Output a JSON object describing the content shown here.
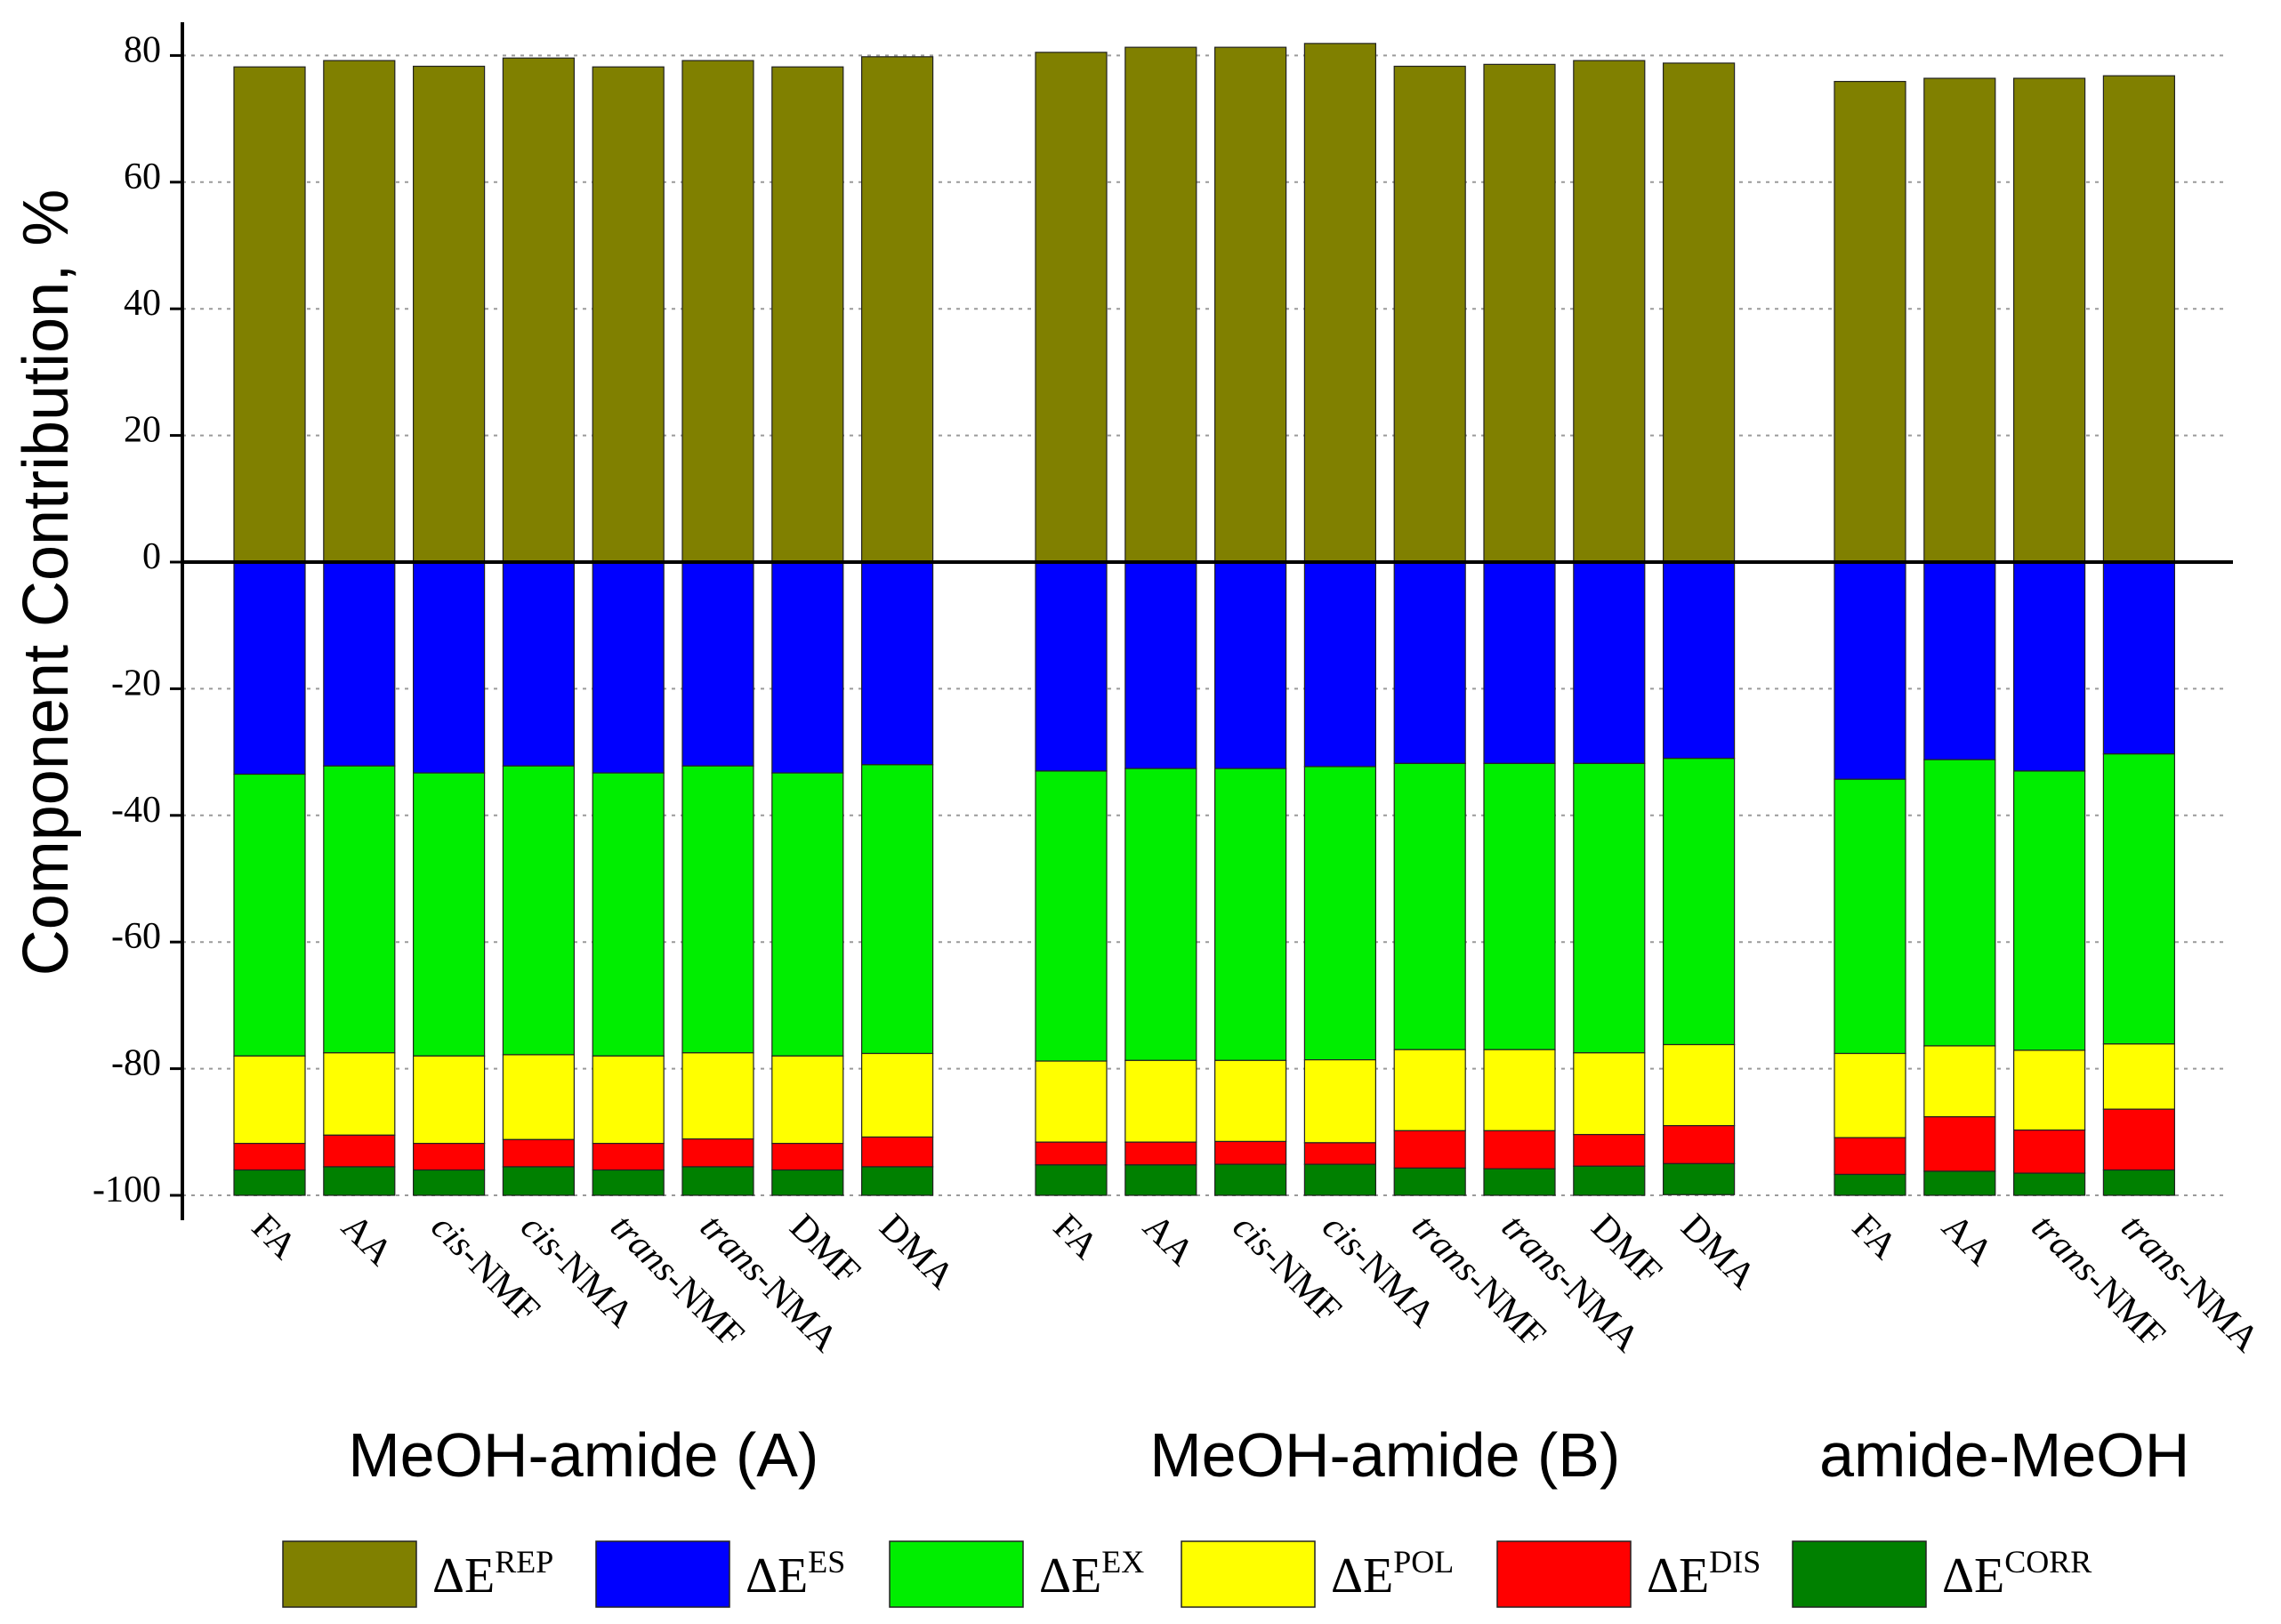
{
  "chart_data": {
    "type": "bar",
    "stacked": true,
    "ylabel": "Component Contribution, %",
    "ylim": [
      -100,
      85
    ],
    "yticks": [
      {
        "value": 80,
        "label": "80"
      },
      {
        "value": 60,
        "label": "60"
      },
      {
        "value": 40,
        "label": "40"
      },
      {
        "value": 20,
        "label": "20"
      },
      {
        "value": 0,
        "label": "0"
      },
      {
        "value": -20,
        "label": "-20"
      },
      {
        "value": -40,
        "label": "-40"
      },
      {
        "value": -60,
        "label": "-60"
      },
      {
        "value": -80,
        "label": "-80"
      },
      {
        "value": -100,
        "label": "-100"
      }
    ],
    "grid": true,
    "legend_position": "bottom",
    "series": [
      {
        "key": "rep",
        "base": "ΔE",
        "sup": "REP",
        "color": "#808000"
      },
      {
        "key": "es",
        "base": "ΔE",
        "sup": "ES",
        "color": "#0000ff"
      },
      {
        "key": "ex",
        "base": "ΔE",
        "sup": "EX",
        "color": "#00ee00"
      },
      {
        "key": "pol",
        "base": "ΔE",
        "sup": "POL",
        "color": "#ffff00"
      },
      {
        "key": "dis",
        "base": "ΔE",
        "sup": "DIS",
        "color": "#ff0000"
      },
      {
        "key": "corr",
        "base": "ΔE",
        "sup": "CORR",
        "color": "#008000"
      }
    ],
    "groups": [
      {
        "name": "MeOH-amide (A)",
        "categories": [
          {
            "label": "FA",
            "italic_prefix": "",
            "rep": 78.2,
            "es": -33.5,
            "ex": -44.5,
            "pol": -13.8,
            "dis": -4.2,
            "corr": -4.0
          },
          {
            "label": "AA",
            "italic_prefix": "",
            "rep": 79.2,
            "es": -32.2,
            "ex": -45.3,
            "pol": -13.0,
            "dis": -5.0,
            "corr": -4.5
          },
          {
            "label": "-NMF",
            "italic_prefix": "cis",
            "rep": 78.3,
            "es": -33.3,
            "ex": -44.7,
            "pol": -13.8,
            "dis": -4.2,
            "corr": -4.0
          },
          {
            "label": "-NMA",
            "italic_prefix": "cis",
            "rep": 79.6,
            "es": -32.2,
            "ex": -45.6,
            "pol": -13.4,
            "dis": -4.3,
            "corr": -4.5
          },
          {
            "label": "-NMF",
            "italic_prefix": "trans",
            "rep": 78.2,
            "es": -33.3,
            "ex": -44.7,
            "pol": -13.8,
            "dis": -4.2,
            "corr": -4.0
          },
          {
            "label": "-NMA",
            "italic_prefix": "trans",
            "rep": 79.2,
            "es": -32.2,
            "ex": -45.3,
            "pol": -13.6,
            "dis": -4.4,
            "corr": -4.5
          },
          {
            "label": "DMF",
            "italic_prefix": "",
            "rep": 78.2,
            "es": -33.3,
            "ex": -44.7,
            "pol": -13.8,
            "dis": -4.2,
            "corr": -4.0
          },
          {
            "label": "DMA",
            "italic_prefix": "",
            "rep": 79.8,
            "es": -32.0,
            "ex": -45.6,
            "pol": -13.2,
            "dis": -4.7,
            "corr": -4.5
          }
        ]
      },
      {
        "name": "MeOH-amide (B)",
        "categories": [
          {
            "label": "FA",
            "italic_prefix": "",
            "rep": 80.5,
            "es": -33.0,
            "ex": -45.8,
            "pol": -12.8,
            "dis": -3.6,
            "corr": -4.8
          },
          {
            "label": "AA",
            "italic_prefix": "",
            "rep": 81.3,
            "es": -32.6,
            "ex": -46.1,
            "pol": -12.9,
            "dis": -3.6,
            "corr": -4.8
          },
          {
            "label": "-NMF",
            "italic_prefix": "cis",
            "rep": 81.3,
            "es": -32.6,
            "ex": -46.1,
            "pol": -12.8,
            "dis": -3.6,
            "corr": -4.9
          },
          {
            "label": "-NMA",
            "italic_prefix": "cis",
            "rep": 81.9,
            "es": -32.3,
            "ex": -46.3,
            "pol": -13.1,
            "dis": -3.4,
            "corr": -4.9
          },
          {
            "label": "-NMF",
            "italic_prefix": "trans",
            "rep": 78.3,
            "es": -31.8,
            "ex": -45.2,
            "pol": -12.8,
            "dis": -5.9,
            "corr": -4.3
          },
          {
            "label": "-NMA",
            "italic_prefix": "trans",
            "rep": 78.6,
            "es": -31.8,
            "ex": -45.2,
            "pol": -12.8,
            "dis": -6.0,
            "corr": -4.2
          },
          {
            "label": "DMF",
            "italic_prefix": "",
            "rep": 79.2,
            "es": -31.8,
            "ex": -45.7,
            "pol": -12.9,
            "dis": -5.0,
            "corr": -4.6
          },
          {
            "label": "DMA",
            "italic_prefix": "",
            "rep": 78.8,
            "es": -31.0,
            "ex": -45.2,
            "pol": -12.8,
            "dis": -6.0,
            "corr": -4.9
          }
        ]
      },
      {
        "name": "amide-MeOH",
        "categories": [
          {
            "label": "FA",
            "italic_prefix": "",
            "rep": 75.9,
            "es": -34.3,
            "ex": -43.3,
            "pol": -13.3,
            "dis": -5.8,
            "corr": -3.3
          },
          {
            "label": "AA",
            "italic_prefix": "",
            "rep": 76.4,
            "es": -31.2,
            "ex": -45.2,
            "pol": -11.2,
            "dis": -8.6,
            "corr": -3.8
          },
          {
            "label": "-NMF",
            "italic_prefix": "trans",
            "rep": 76.4,
            "es": -33.0,
            "ex": -44.1,
            "pol": -12.6,
            "dis": -6.8,
            "corr": -3.5
          },
          {
            "label": "-NMA",
            "italic_prefix": "trans",
            "rep": 76.8,
            "es": -30.3,
            "ex": -45.8,
            "pol": -10.3,
            "dis": -9.6,
            "corr": -4.0
          }
        ]
      }
    ]
  }
}
